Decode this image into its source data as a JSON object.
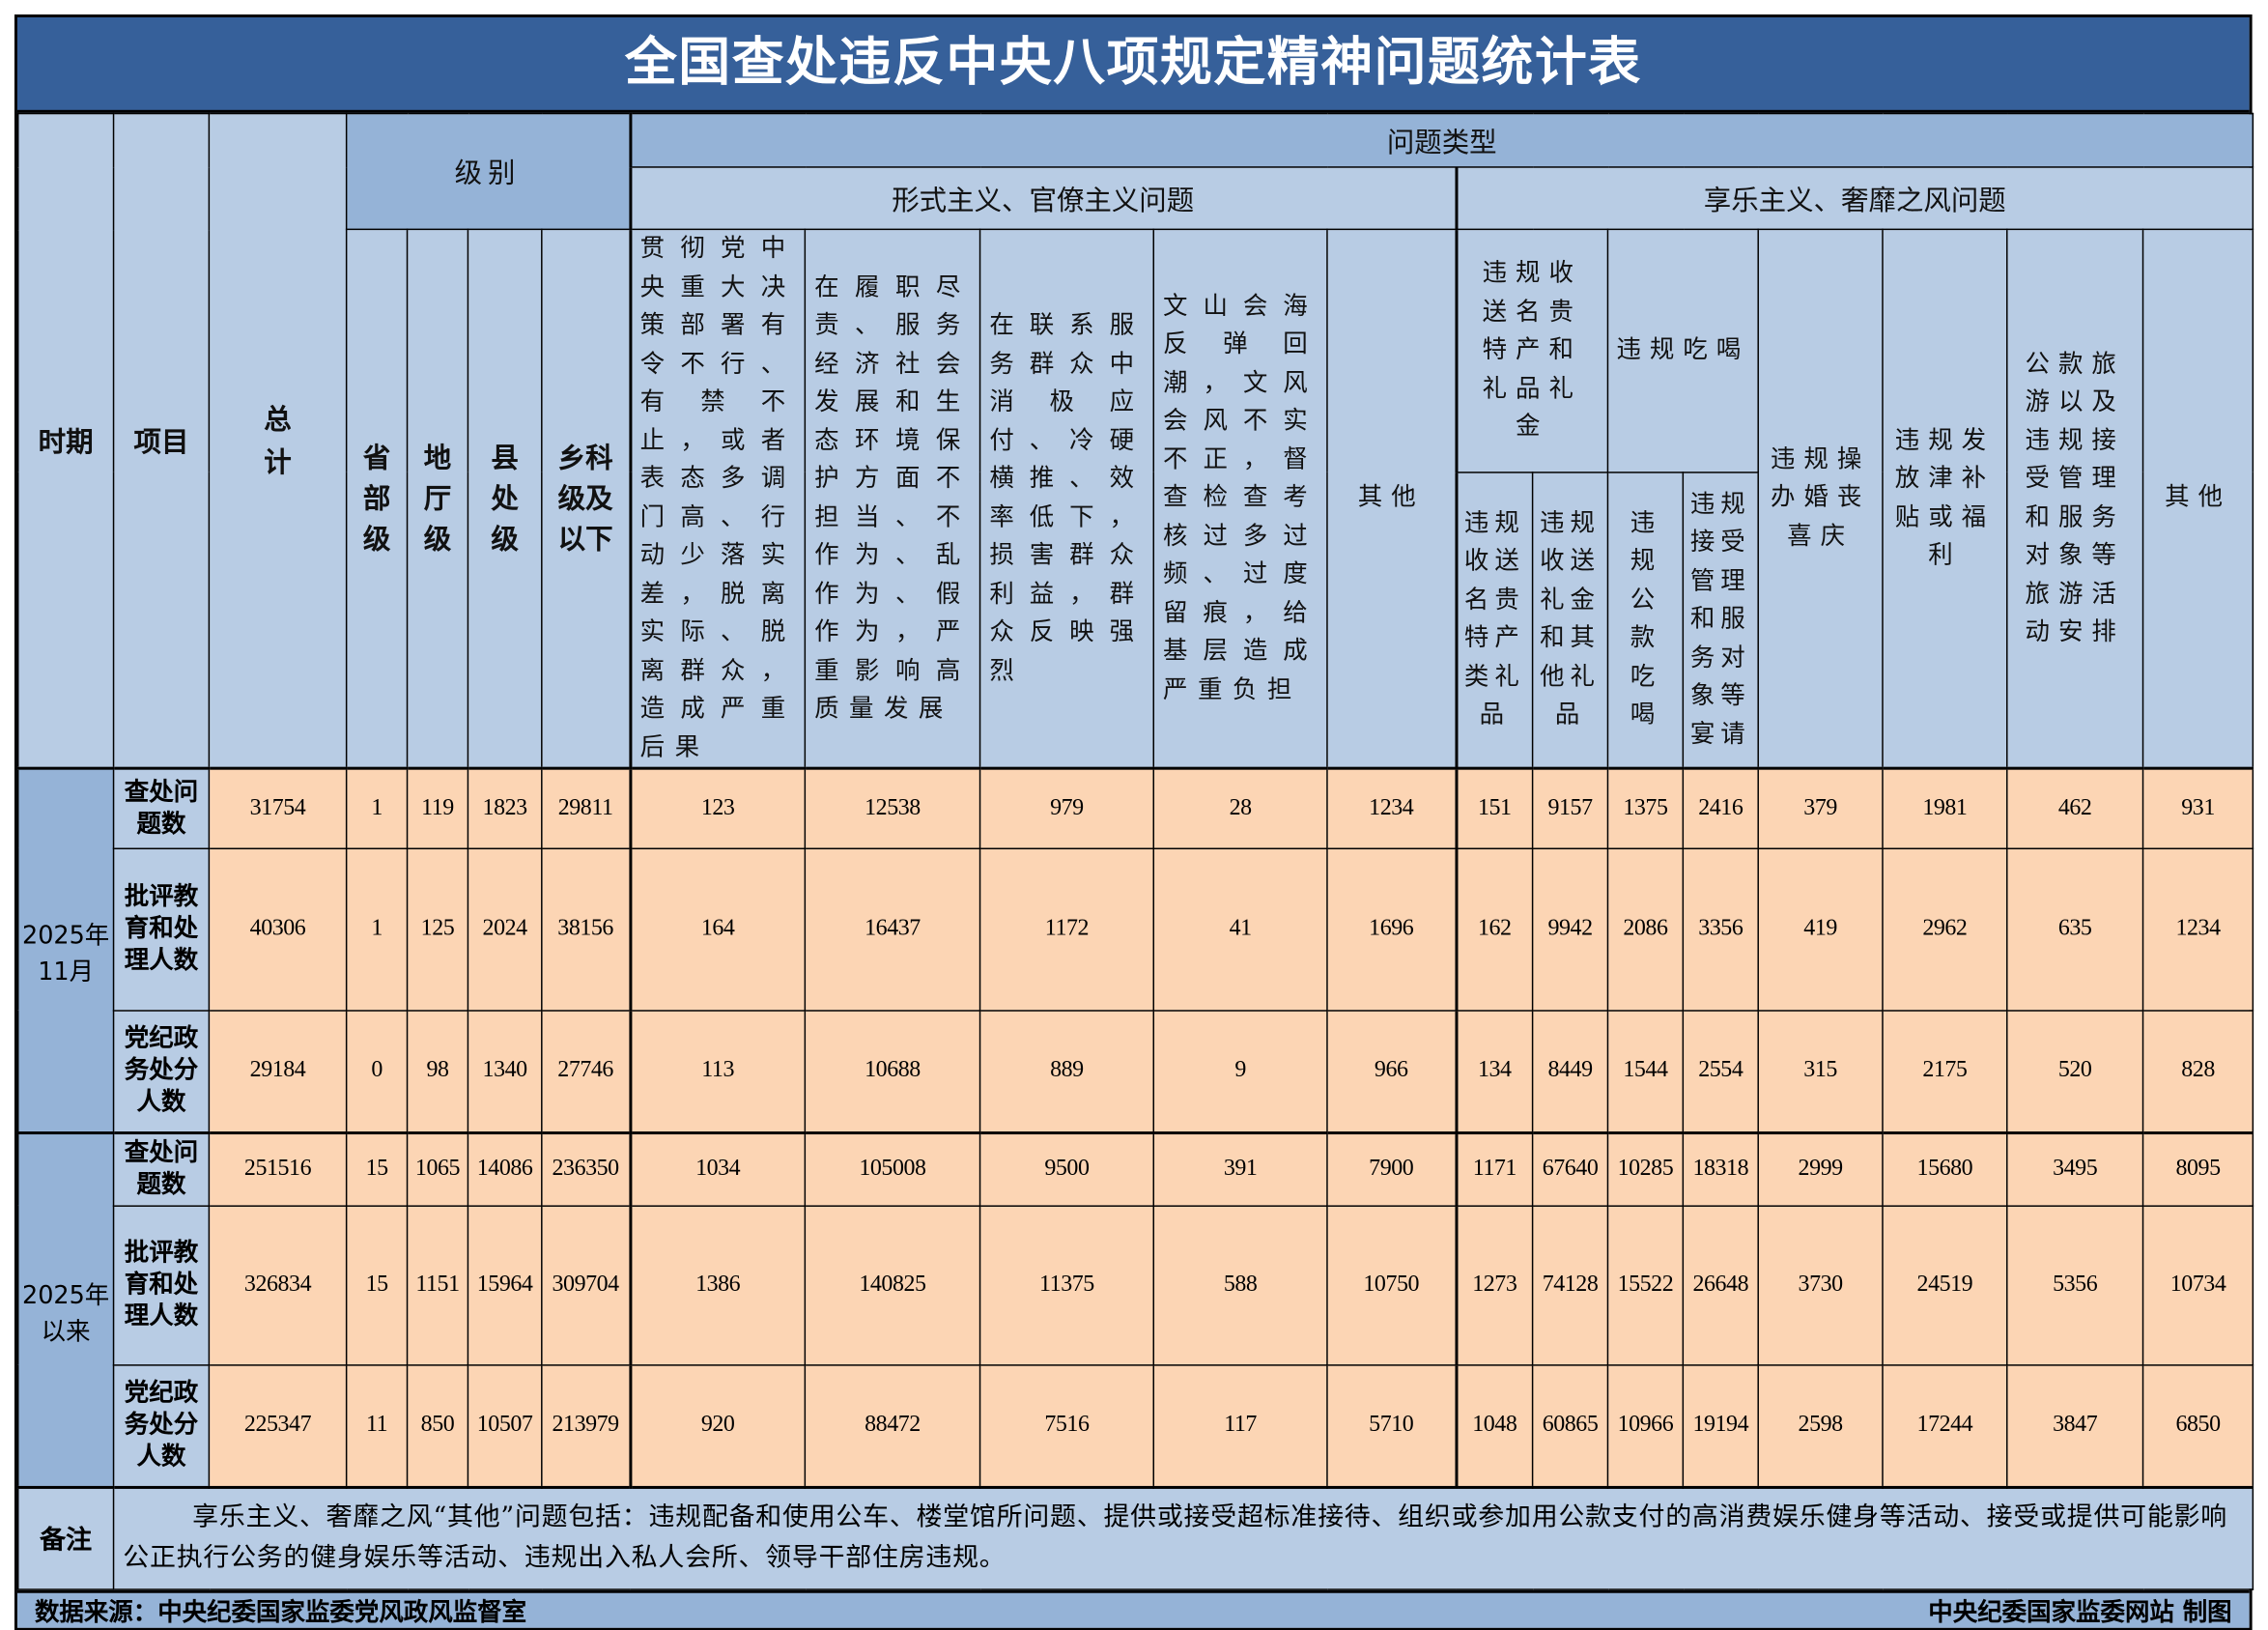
{
  "title": "全国查处违反中央八项规定精神问题统计表",
  "headers": {
    "period": "时期",
    "item": "项目",
    "total": "总计",
    "level": "级别",
    "problem_type": "问题类型",
    "formalism": "形式主义、官僚主义问题",
    "hedonism": "享乐主义、奢靡之风问题",
    "levels": [
      "省部级",
      "地厅级",
      "县处级",
      "乡科级及以下"
    ],
    "formalism_cols": [
      "贯彻党中央重大决策部署有令不行、有禁不止，或者表态多调门高、行动少落实差，脱离实际、脱离群众，造成严重后果",
      "在履职尽责、服务经济社会发展和生态环境保护方面不担当、不作为、乱作为、假作为，严重影响高质量发展",
      "在联系服务群众中消极应付、冷硬横推、效率低下，损害群众利益，群众反映强烈",
      "文山会海反弹回潮，文风会风不实不正，督查检查考核过多过频、过度留痕，给基层造成严重负担",
      "其他"
    ],
    "gifts_group": "违规收送名贵特产和礼品礼金",
    "dining_group": "违规吃喝",
    "gifts_cols": [
      "违规收送名贵特产类礼品",
      "违规收送礼金和其他礼品"
    ],
    "dining_cols": [
      "违规公款吃喝",
      "违规接受管理和服务对象等宴请"
    ],
    "hedonism_cols": [
      "违规操办婚丧喜庆",
      "违规发放津补贴或福利",
      "公款旅游以及违规接受管理和服务对象等旅游活动安排",
      "其他"
    ]
  },
  "periods": [
    {
      "label": "2025年11月",
      "rows": [
        {
          "item": "查处问题数",
          "values": [
            "31754",
            "1",
            "119",
            "1823",
            "29811",
            "123",
            "12538",
            "979",
            "28",
            "1234",
            "151",
            "9157",
            "1375",
            "2416",
            "379",
            "1981",
            "462",
            "931"
          ]
        },
        {
          "item": "批评教育和处理人数",
          "values": [
            "40306",
            "1",
            "125",
            "2024",
            "38156",
            "164",
            "16437",
            "1172",
            "41",
            "1696",
            "162",
            "9942",
            "2086",
            "3356",
            "419",
            "2962",
            "635",
            "1234"
          ]
        },
        {
          "item": "党纪政务处分人数",
          "values": [
            "29184",
            "0",
            "98",
            "1340",
            "27746",
            "113",
            "10688",
            "889",
            "9",
            "966",
            "134",
            "8449",
            "1544",
            "2554",
            "315",
            "2175",
            "520",
            "828"
          ]
        }
      ]
    },
    {
      "label": "2025年以来",
      "rows": [
        {
          "item": "查处问题数",
          "values": [
            "251516",
            "15",
            "1065",
            "14086",
            "236350",
            "1034",
            "105008",
            "9500",
            "391",
            "7900",
            "1171",
            "67640",
            "10285",
            "18318",
            "2999",
            "15680",
            "3495",
            "8095"
          ]
        },
        {
          "item": "批评教育和处理人数",
          "values": [
            "326834",
            "15",
            "1151",
            "15964",
            "309704",
            "1386",
            "140825",
            "11375",
            "588",
            "10750",
            "1273",
            "74128",
            "15522",
            "26648",
            "3730",
            "24519",
            "5356",
            "10734"
          ]
        },
        {
          "item": "党纪政务处分人数",
          "values": [
            "225347",
            "11",
            "850",
            "10507",
            "213979",
            "920",
            "88472",
            "7516",
            "117",
            "5710",
            "1048",
            "60865",
            "10966",
            "19194",
            "2598",
            "17244",
            "3847",
            "6850"
          ]
        }
      ]
    }
  ],
  "note": {
    "label": "备注",
    "text": "享乐主义、奢靡之风“其他”问题包括：违规配备和使用公车、楼堂馆所问题、提供或接受超标准接待、组织或参加用公款支付的高消费娱乐健身等活动、接受或提供可能影响公正执行公务的健身娱乐等活动、违规出入私人会所、领导干部住房违规。"
  },
  "footer": {
    "source": "数据来源：中央纪委国家监委党风政风监督室",
    "credit": "中央纪委国家监委网站 制图"
  },
  "colors": {
    "title_bg": "#36609a",
    "header_bg": "#b8cce4",
    "period_bg": "#95b3d7",
    "data_bg": "#fcd5b4"
  }
}
